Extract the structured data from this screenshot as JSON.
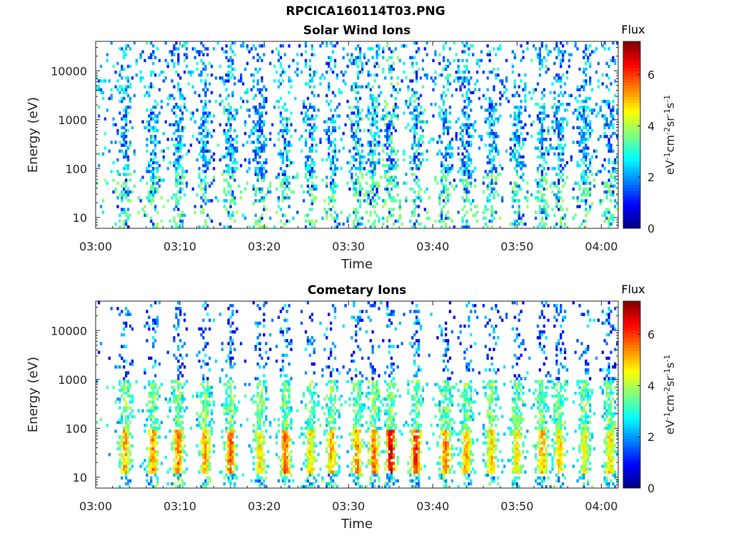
{
  "figure": {
    "title": "RPCICA160114T03.PNG"
  },
  "chart_data": [
    {
      "type": "heatmap",
      "title": "Solar Wind Ions",
      "xlabel": "Time",
      "ylabel": "Energy (eV)",
      "x_ticks": [
        "03:00",
        "03:10",
        "03:20",
        "03:30",
        "03:40",
        "03:50",
        "04:00"
      ],
      "x_range": [
        "03:00",
        "04:02"
      ],
      "y_scale": "log",
      "y_ticks": [
        10,
        100,
        1000,
        10000
      ],
      "y_range": [
        6,
        40000
      ],
      "colorbar": {
        "title": "Flux",
        "label": "eV-1cm-2sr-1s-1",
        "ticks": [
          0,
          2,
          4,
          6
        ],
        "range": [
          0,
          7.3
        ],
        "colormap": "jet"
      },
      "intensity_note": "sparse speckle, mostly blue/cyan values 1-3, green streaks near 6-60 eV",
      "bursts_min": [
        3.5,
        6.8,
        9.8,
        13,
        16,
        19.5,
        22.5,
        25.5,
        28,
        31,
        33,
        35,
        38,
        41.5,
        44,
        47,
        50,
        53,
        55,
        58,
        61
      ],
      "burst_peak_flux": [
        3,
        3,
        3,
        2.8,
        3,
        2.5,
        3,
        2.8,
        3,
        3.2,
        3.3,
        3.6,
        3.3,
        3,
        2.8,
        2.8,
        2.8,
        3,
        2.8,
        2.6,
        2.8
      ]
    },
    {
      "type": "heatmap",
      "title": "Cometary Ions",
      "xlabel": "Time",
      "ylabel": "Energy (eV)",
      "x_ticks": [
        "03:00",
        "03:10",
        "03:20",
        "03:30",
        "03:40",
        "03:50",
        "04:00"
      ],
      "x_range": [
        "03:00",
        "04:02"
      ],
      "y_scale": "log",
      "y_ticks": [
        10,
        100,
        1000,
        10000
      ],
      "y_range": [
        6,
        40000
      ],
      "colorbar": {
        "title": "Flux",
        "label": "eV-1cm-2sr-1s-1",
        "ticks": [
          0,
          2,
          4,
          6
        ],
        "range": [
          0,
          7.3
        ],
        "colormap": "jet"
      },
      "intensity_note": "periodic bursts, yellow/orange 5-6 at 15-50 eV, cyan/blue above 100 eV",
      "bursts_min": [
        3.5,
        6.8,
        9.8,
        13,
        16,
        19.5,
        22.5,
        25.5,
        28,
        31,
        33,
        35,
        38,
        41.5,
        44,
        47,
        50,
        53,
        55,
        58,
        61
      ],
      "burst_peak_flux": [
        5,
        5.2,
        5.4,
        5,
        5.6,
        4.6,
        5.6,
        4.6,
        5,
        5.2,
        5.4,
        6.6,
        6,
        5.4,
        5,
        4.8,
        4.6,
        5,
        4.6,
        4.4,
        4.6
      ]
    }
  ]
}
